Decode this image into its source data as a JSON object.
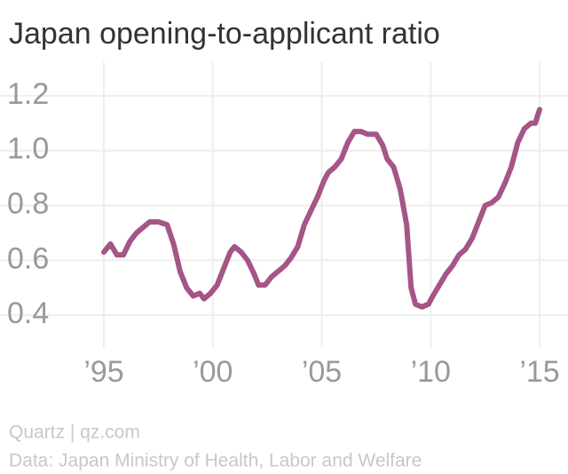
{
  "chart_data": {
    "type": "line",
    "title": "Japan opening-to-applicant ratio",
    "source": "Quartz | qz.com",
    "note": "Data: Japan Ministry of Health, Labor and Welfare",
    "xlim": [
      1995,
      2015
    ],
    "xticks": [
      {
        "value": 1995,
        "label": "’95"
      },
      {
        "value": 2000,
        "label": "’00"
      },
      {
        "value": 2005,
        "label": "’05"
      },
      {
        "value": 2010,
        "label": "’10"
      },
      {
        "value": 2015,
        "label": "’15"
      }
    ],
    "ylim": [
      0.3,
      1.3
    ],
    "yticks": [
      0.4,
      0.6,
      0.8,
      {
        "value": 1.0,
        "label": "1.0"
      },
      1.2
    ],
    "grid": true,
    "x": [
      1995.0,
      1995.3,
      1995.6,
      1995.9,
      1996.2,
      1996.5,
      1996.8,
      1997.1,
      1997.5,
      1997.9,
      1998.2,
      1998.5,
      1998.8,
      1999.1,
      1999.4,
      1999.6,
      1999.9,
      2000.2,
      2000.5,
      2000.8,
      2001.0,
      2001.3,
      2001.6,
      2001.9,
      2002.1,
      2002.4,
      2002.7,
      2003.0,
      2003.3,
      2003.6,
      2003.9,
      2004.2,
      2004.5,
      2004.8,
      2005.1,
      2005.3,
      2005.6,
      2005.9,
      2006.2,
      2006.5,
      2006.8,
      2007.1,
      2007.5,
      2007.8,
      2008.0,
      2008.3,
      2008.6,
      2008.9,
      2009.1,
      2009.3,
      2009.6,
      2009.9,
      2010.1,
      2010.4,
      2010.7,
      2011.0,
      2011.3,
      2011.6,
      2011.9,
      2012.2,
      2012.5,
      2012.8,
      2013.1,
      2013.4,
      2013.7,
      2014.0,
      2014.3,
      2014.6,
      2014.8,
      2015.0
    ],
    "series": [
      {
        "name": "Opening-to-applicant ratio",
        "color": "#a55586",
        "values": [
          0.63,
          0.66,
          0.62,
          0.62,
          0.67,
          0.7,
          0.72,
          0.74,
          0.74,
          0.73,
          0.66,
          0.56,
          0.5,
          0.47,
          0.48,
          0.46,
          0.48,
          0.51,
          0.57,
          0.63,
          0.65,
          0.63,
          0.6,
          0.55,
          0.51,
          0.51,
          0.54,
          0.56,
          0.58,
          0.61,
          0.65,
          0.73,
          0.78,
          0.83,
          0.89,
          0.92,
          0.94,
          0.97,
          1.03,
          1.07,
          1.07,
          1.06,
          1.06,
          1.02,
          0.97,
          0.94,
          0.86,
          0.73,
          0.5,
          0.44,
          0.43,
          0.44,
          0.47,
          0.51,
          0.55,
          0.58,
          0.62,
          0.64,
          0.68,
          0.74,
          0.8,
          0.81,
          0.83,
          0.88,
          0.94,
          1.03,
          1.08,
          1.1,
          1.1,
          1.15
        ]
      }
    ]
  }
}
